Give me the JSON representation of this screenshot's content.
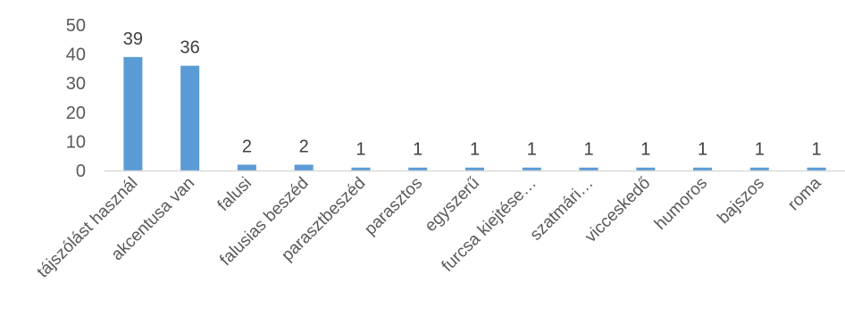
{
  "chart_data": {
    "type": "bar",
    "categories": [
      "tájszólást használ",
      "akcentusa van",
      "falusi",
      "falusias beszéd",
      "parasztbeszéd",
      "parasztos",
      "egyszerű",
      "furcsa kiejtése…",
      "szatmári…",
      "vicceskedő",
      "humoros",
      "bajszos",
      "roma"
    ],
    "values": [
      39,
      36,
      2,
      2,
      1,
      1,
      1,
      1,
      1,
      1,
      1,
      1,
      1
    ],
    "data_labels": [
      "39",
      "36",
      "2",
      "2",
      "1",
      "1",
      "1",
      "1",
      "1",
      "1",
      "1",
      "1",
      "1"
    ],
    "yticks": [
      0,
      10,
      20,
      30,
      40,
      50
    ],
    "ylim": [
      0,
      50
    ],
    "grid": false,
    "legend": "none",
    "colors": {
      "bar": "#5B9BD5",
      "axis": "#D9D9D9",
      "text": "#595959"
    }
  }
}
